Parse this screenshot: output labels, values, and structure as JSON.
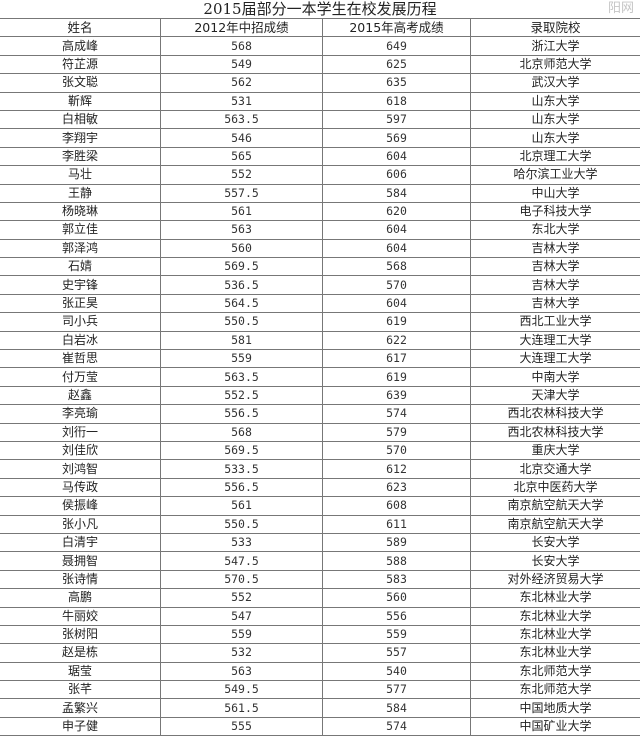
{
  "title": "2015届部分一本学生在校发展历程",
  "columns": [
    "姓名",
    "2012年中招成绩",
    "2015年高考成绩",
    "录取院校"
  ],
  "rows": [
    [
      "高成峰",
      "568",
      "649",
      "浙江大学"
    ],
    [
      "符芷源",
      "549",
      "625",
      "北京师范大学"
    ],
    [
      "张文聪",
      "562",
      "635",
      "武汉大学"
    ],
    [
      "靳辉",
      "531",
      "618",
      "山东大学"
    ],
    [
      "白相敏",
      "563.5",
      "597",
      "山东大学"
    ],
    [
      "李翔宇",
      "546",
      "569",
      "山东大学"
    ],
    [
      "李胜梁",
      "565",
      "604",
      "北京理工大学"
    ],
    [
      "马壮",
      "552",
      "606",
      "哈尔滨工业大学"
    ],
    [
      "王静",
      "557.5",
      "584",
      "中山大学"
    ],
    [
      "杨晓琳",
      "561",
      "620",
      "电子科技大学"
    ],
    [
      "郭立佳",
      "563",
      "604",
      "东北大学"
    ],
    [
      "郭泽鸿",
      "560",
      "604",
      "吉林大学"
    ],
    [
      "石婧",
      "569.5",
      "568",
      "吉林大学"
    ],
    [
      "史宇锋",
      "536.5",
      "570",
      "吉林大学"
    ],
    [
      "张正昊",
      "564.5",
      "604",
      "吉林大学"
    ],
    [
      "司小兵",
      "550.5",
      "619",
      "西北工业大学"
    ],
    [
      "白岩冰",
      "581",
      "622",
      "大连理工大学"
    ],
    [
      "崔哲思",
      "559",
      "617",
      "大连理工大学"
    ],
    [
      "付万莹",
      "563.5",
      "619",
      "中南大学"
    ],
    [
      "赵鑫",
      "552.5",
      "639",
      "天津大学"
    ],
    [
      "李亮瑜",
      "556.5",
      "574",
      "西北农林科技大学"
    ],
    [
      "刘衎一",
      "568",
      "579",
      "西北农林科技大学"
    ],
    [
      "刘佳欣",
      "569.5",
      "570",
      "重庆大学"
    ],
    [
      "刘鸿智",
      "533.5",
      "612",
      "北京交通大学"
    ],
    [
      "马传政",
      "556.5",
      "623",
      "北京中医药大学"
    ],
    [
      "侯振峰",
      "561",
      "608",
      "南京航空航天大学"
    ],
    [
      "张小凡",
      "550.5",
      "611",
      "南京航空航天大学"
    ],
    [
      "白清宇",
      "533",
      "589",
      "长安大学"
    ],
    [
      "聂拥智",
      "547.5",
      "588",
      "长安大学"
    ],
    [
      "张诗情",
      "570.5",
      "583",
      "对外经济贸易大学"
    ],
    [
      "高鹏",
      "552",
      "560",
      "东北林业大学"
    ],
    [
      "牛丽姣",
      "547",
      "556",
      "东北林业大学"
    ],
    [
      "张树阳",
      "559",
      "559",
      "东北林业大学"
    ],
    [
      "赵是栋",
      "532",
      "557",
      "东北林业大学"
    ],
    [
      "琚莹",
      "563",
      "540",
      "东北师范大学"
    ],
    [
      "张芊",
      "549.5",
      "577",
      "东北师范大学"
    ],
    [
      "孟繁兴",
      "561.5",
      "584",
      "中国地质大学"
    ],
    [
      "申子健",
      "555",
      "574",
      "中国矿业大学"
    ]
  ],
  "watermark": "阳网"
}
